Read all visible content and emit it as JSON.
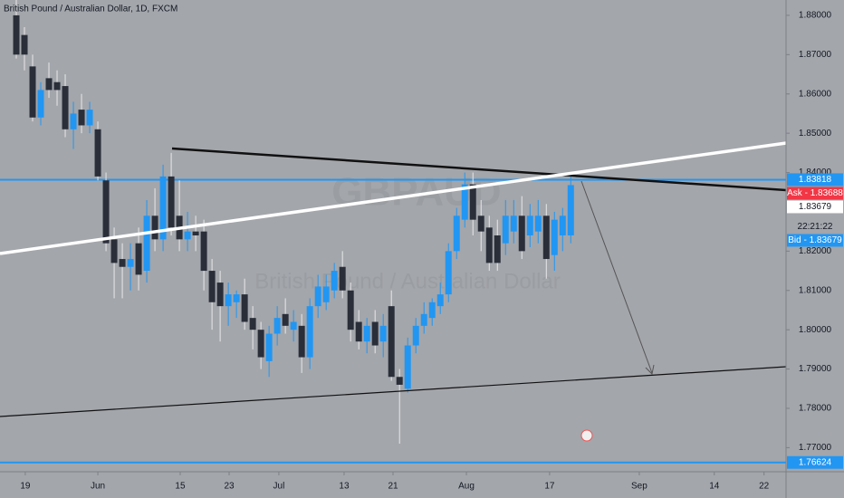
{
  "chart_data": {
    "type": "candlestick",
    "title": "British Pound / Australian Dollar, 1D, FXCM",
    "watermark": {
      "symbol": "GBPAUD",
      "description": "British Pound / Australian Dollar"
    },
    "up_color": "#2196f3",
    "down_color": "#2a2e39",
    "x": [
      0,
      1,
      2,
      3,
      4,
      5,
      6,
      7,
      8,
      9,
      10,
      11,
      12,
      13,
      14,
      15,
      16,
      17,
      18,
      19,
      20,
      21,
      22,
      23,
      24,
      25,
      26,
      27,
      28,
      29,
      30,
      31,
      32,
      33,
      34,
      35,
      36,
      37,
      38,
      39,
      40,
      41,
      42,
      43,
      44,
      45,
      46,
      47,
      48,
      49,
      50,
      51,
      52,
      53,
      54,
      55,
      56,
      57,
      58,
      59,
      60,
      61,
      62,
      63,
      64,
      65,
      66,
      67,
      68
    ],
    "open": [
      1.88,
      1.875,
      1.867,
      1.854,
      1.864,
      1.863,
      1.862,
      1.851,
      1.856,
      1.852,
      1.851,
      1.838,
      1.823,
      1.818,
      1.816,
      1.822,
      1.815,
      1.829,
      1.823,
      1.839,
      1.829,
      1.823,
      1.825,
      1.825,
      1.815,
      1.812,
      1.806,
      1.807,
      1.809,
      1.803,
      1.8,
      1.792,
      1.799,
      1.804,
      1.8,
      1.801,
      1.793,
      1.806,
      1.807,
      1.81,
      1.816,
      1.81,
      1.802,
      1.797,
      1.802,
      1.797,
      1.806,
      1.788,
      1.785,
      1.796,
      1.801,
      1.803,
      1.806,
      1.809,
      1.82,
      1.828,
      1.837,
      1.829,
      1.826,
      1.824,
      1.822,
      1.825,
      1.829,
      1.824,
      1.825,
      1.829,
      1.819,
      1.824,
      1.824
    ],
    "high": [
      1.884,
      1.877,
      1.87,
      1.863,
      1.868,
      1.866,
      1.865,
      1.858,
      1.86,
      1.858,
      1.853,
      1.84,
      1.826,
      1.822,
      1.822,
      1.826,
      1.833,
      1.836,
      1.842,
      1.845,
      1.838,
      1.83,
      1.829,
      1.828,
      1.818,
      1.815,
      1.812,
      1.81,
      1.813,
      1.806,
      1.802,
      1.801,
      1.806,
      1.808,
      1.805,
      1.804,
      1.808,
      1.814,
      1.814,
      1.817,
      1.82,
      1.812,
      1.805,
      1.803,
      1.805,
      1.804,
      1.81,
      1.79,
      1.798,
      1.803,
      1.807,
      1.808,
      1.812,
      1.822,
      1.831,
      1.84,
      1.84,
      1.833,
      1.829,
      1.828,
      1.833,
      1.833,
      1.834,
      1.832,
      1.833,
      1.832,
      1.83,
      1.831,
      1.839
    ],
    "low": [
      1.869,
      1.866,
      1.853,
      1.852,
      1.859,
      1.857,
      1.849,
      1.846,
      1.85,
      1.85,
      1.838,
      1.82,
      1.808,
      1.808,
      1.81,
      1.81,
      1.812,
      1.82,
      1.82,
      1.824,
      1.82,
      1.82,
      1.82,
      1.81,
      1.8,
      1.797,
      1.801,
      1.803,
      1.8,
      1.795,
      1.79,
      1.788,
      1.796,
      1.799,
      1.797,
      1.789,
      1.79,
      1.803,
      1.805,
      1.808,
      1.808,
      1.797,
      1.795,
      1.794,
      1.794,
      1.793,
      1.787,
      1.771,
      1.784,
      1.794,
      1.799,
      1.801,
      1.804,
      1.807,
      1.818,
      1.826,
      1.824,
      1.82,
      1.815,
      1.815,
      1.819,
      1.822,
      1.818,
      1.821,
      1.822,
      1.813,
      1.815,
      1.82,
      1.822
    ],
    "close": [
      1.87,
      1.87,
      1.854,
      1.861,
      1.861,
      1.861,
      1.851,
      1.855,
      1.852,
      1.856,
      1.839,
      1.822,
      1.817,
      1.816,
      1.818,
      1.814,
      1.829,
      1.823,
      1.839,
      1.826,
      1.823,
      1.825,
      1.824,
      1.815,
      1.807,
      1.806,
      1.809,
      1.809,
      1.802,
      1.8,
      1.793,
      1.799,
      1.803,
      1.801,
      1.802,
      1.793,
      1.806,
      1.811,
      1.811,
      1.815,
      1.81,
      1.8,
      1.797,
      1.801,
      1.796,
      1.801,
      1.788,
      1.786,
      1.796,
      1.801,
      1.804,
      1.807,
      1.809,
      1.82,
      1.829,
      1.837,
      1.828,
      1.825,
      1.817,
      1.817,
      1.829,
      1.829,
      1.82,
      1.829,
      1.829,
      1.818,
      1.828,
      1.829,
      1.8368
    ],
    "xlim": [
      -2,
      94.4
    ],
    "xticks": [
      {
        "value": 1.1,
        "label": "19"
      },
      {
        "value": 10,
        "label": "Jun"
      },
      {
        "value": 20.1,
        "label": "15"
      },
      {
        "value": 26.1,
        "label": "23"
      },
      {
        "value": 32.2,
        "label": "Jul"
      },
      {
        "value": 40.2,
        "label": "13"
      },
      {
        "value": 46.2,
        "label": "21"
      },
      {
        "value": 55.2,
        "label": "Aug"
      },
      {
        "value": 65.4,
        "label": "17"
      },
      {
        "value": 76.4,
        "label": "Sep"
      },
      {
        "value": 85.6,
        "label": "14"
      },
      {
        "value": 91.7,
        "label": "22"
      }
    ],
    "ylim": [
      1.7641,
      1.8839
    ],
    "yticks": [
      {
        "value": 1.88,
        "label": "1.88000"
      },
      {
        "value": 1.87,
        "label": "1.87000"
      },
      {
        "value": 1.86,
        "label": "1.86000"
      },
      {
        "value": 1.85,
        "label": "1.85000"
      },
      {
        "value": 1.84,
        "label": "1.84000"
      },
      {
        "value": 1.82,
        "label": "1.82000"
      },
      {
        "value": 1.81,
        "label": "1.81000"
      },
      {
        "value": 1.8,
        "label": "1.80000"
      },
      {
        "value": 1.79,
        "label": "1.79000"
      },
      {
        "value": 1.78,
        "label": "1.78000"
      },
      {
        "value": 1.77,
        "label": "1.77000"
      }
    ],
    "levels": [
      {
        "value": 1.83818,
        "label": "1.83818"
      },
      {
        "value": 1.76624,
        "label": "1.76624"
      }
    ],
    "level_color": "#2196f3",
    "price_tags": [
      {
        "value": 1.83688,
        "label": "Ask - 1.83688",
        "color": "#f23645"
      },
      {
        "value": 1.83679,
        "label": "1.83679",
        "color": "#ffffff"
      },
      {
        "value": 1.83679,
        "label": "Bid - 1.83679",
        "color": "#2196f3"
      }
    ],
    "countdown": "22:21:22"
  }
}
